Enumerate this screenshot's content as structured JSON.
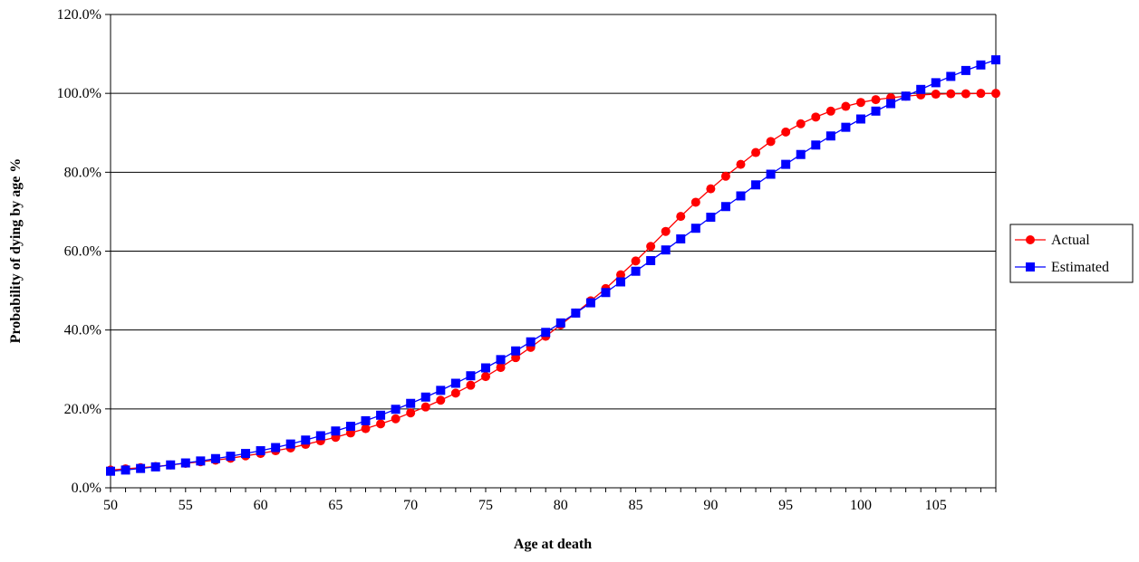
{
  "chart_data": {
    "type": "line",
    "title": "",
    "xlabel": "Age at death",
    "ylabel": "Probability of dying by age %",
    "xlim": [
      50,
      109
    ],
    "ylim": [
      0,
      1.2
    ],
    "x_ticks": [
      50,
      55,
      60,
      65,
      70,
      75,
      80,
      85,
      90,
      95,
      100,
      105
    ],
    "y_ticks": [
      0,
      0.2,
      0.4,
      0.6,
      0.8,
      1.0,
      1.2
    ],
    "x_tick_labels": [
      "50",
      "55",
      "60",
      "65",
      "70",
      "75",
      "80",
      "85",
      "90",
      "95",
      "100",
      "105"
    ],
    "y_tick_labels": [
      "0.0%",
      "20.0%",
      "40.0%",
      "60.0%",
      "80.0%",
      "100.0%",
      "120.0%"
    ],
    "grid": "horizontal",
    "legend_position": "right",
    "x": [
      50,
      51,
      52,
      53,
      54,
      55,
      56,
      57,
      58,
      59,
      60,
      61,
      62,
      63,
      64,
      65,
      66,
      67,
      68,
      69,
      70,
      71,
      72,
      73,
      74,
      75,
      76,
      77,
      78,
      79,
      80,
      81,
      82,
      83,
      84,
      85,
      86,
      87,
      88,
      89,
      90,
      91,
      92,
      93,
      94,
      95,
      96,
      97,
      98,
      99,
      100,
      101,
      102,
      103,
      104,
      105,
      106,
      107,
      108,
      109
    ],
    "series": [
      {
        "name": "Actual",
        "color": "#ff0000",
        "marker": "circle",
        "values": [
          0.045,
          0.048,
          0.051,
          0.054,
          0.058,
          0.062,
          0.066,
          0.07,
          0.075,
          0.081,
          0.087,
          0.094,
          0.101,
          0.11,
          0.119,
          0.128,
          0.139,
          0.15,
          0.162,
          0.175,
          0.19,
          0.205,
          0.222,
          0.24,
          0.26,
          0.282,
          0.305,
          0.33,
          0.356,
          0.384,
          0.413,
          0.443,
          0.474,
          0.505,
          0.54,
          0.575,
          0.612,
          0.65,
          0.688,
          0.724,
          0.758,
          0.79,
          0.82,
          0.85,
          0.878,
          0.902,
          0.923,
          0.94,
          0.955,
          0.967,
          0.977,
          0.984,
          0.989,
          0.993,
          0.996,
          0.998,
          0.999,
          0.999,
          1.0,
          1.0
        ]
      },
      {
        "name": "Estimated",
        "color": "#0000ff",
        "marker": "square",
        "values": [
          0.042,
          0.045,
          0.049,
          0.053,
          0.058,
          0.063,
          0.068,
          0.074,
          0.08,
          0.087,
          0.094,
          0.102,
          0.111,
          0.121,
          0.132,
          0.144,
          0.156,
          0.17,
          0.184,
          0.199,
          0.214,
          0.23,
          0.247,
          0.265,
          0.284,
          0.304,
          0.325,
          0.347,
          0.37,
          0.394,
          0.418,
          0.443,
          0.469,
          0.495,
          0.522,
          0.549,
          0.576,
          0.603,
          0.631,
          0.658,
          0.686,
          0.713,
          0.74,
          0.768,
          0.795,
          0.82,
          0.845,
          0.869,
          0.892,
          0.914,
          0.935,
          0.955,
          0.974,
          0.993,
          1.01,
          1.027,
          1.043,
          1.058,
          1.072,
          1.085
        ]
      }
    ]
  }
}
